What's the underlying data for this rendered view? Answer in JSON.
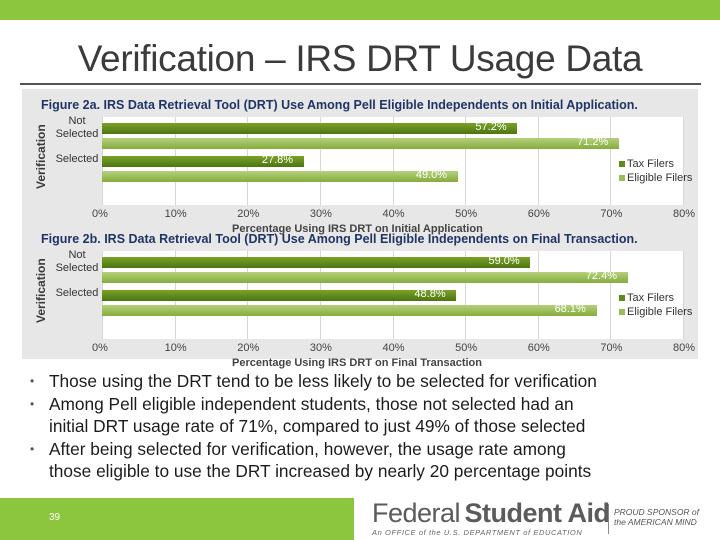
{
  "slide": {
    "title": "Verification – IRS DRT Usage Data",
    "page_number": "39"
  },
  "colors": {
    "accent_green": "#8cc63e",
    "tax_filers": "#5e8a1c",
    "eligible_filers": "#9bbd55",
    "figure_title": "#1f3566"
  },
  "figures": [
    {
      "title": "Figure 2a. IRS Data Retrieval Tool (DRT) Use Among Pell Eligible Independents on Initial Application.",
      "ylabel": "Verification",
      "xlabel": "Percentage Using IRS DRT on Initial Application",
      "categories": [
        {
          "name_line1": "Not",
          "name_line2": "Selected"
        },
        {
          "name_line1": "Selected",
          "name_line2": ""
        }
      ],
      "legend": [
        "Tax Filers",
        "Eligible Filers"
      ],
      "ticks": [
        "0%",
        "10%",
        "20%",
        "30%",
        "40%",
        "50%",
        "60%",
        "70%",
        "80%"
      ]
    },
    {
      "title": "Figure 2b. IRS Data Retrieval Tool (DRT) Use Among Pell Eligible Independents on Final Transaction.",
      "ylabel": "Verification",
      "xlabel": "Percentage Using IRS DRT on Final Transaction",
      "categories": [
        {
          "name_line1": "Not",
          "name_line2": "Selected"
        },
        {
          "name_line1": "Selected",
          "name_line2": ""
        }
      ],
      "legend": [
        "Tax Filers",
        "Eligible Filers"
      ],
      "ticks": [
        "0%",
        "10%",
        "20%",
        "30%",
        "40%",
        "50%",
        "60%",
        "70%",
        "80%"
      ]
    }
  ],
  "chart_data": [
    {
      "type": "bar",
      "orientation": "horizontal",
      "title": "Figure 2a. IRS Data Retrieval Tool (DRT) Use Among Pell Eligible Independents on Initial Application.",
      "ylabel": "Verification",
      "xlabel": "Percentage Using IRS DRT on Initial Application",
      "categories": [
        "Not Selected",
        "Selected"
      ],
      "series": [
        {
          "name": "Tax Filers",
          "values": [
            57.2,
            27.8
          ],
          "labels": [
            "57.2%",
            "27.8%"
          ]
        },
        {
          "name": "Eligible Filers",
          "values": [
            71.2,
            49.0
          ],
          "labels": [
            "71.2%",
            "49.0%"
          ]
        }
      ],
      "xlim": [
        0,
        80
      ],
      "legend_position": "right",
      "grid": true
    },
    {
      "type": "bar",
      "orientation": "horizontal",
      "title": "Figure 2b. IRS Data Retrieval Tool (DRT) Use Among Pell Eligible Independents on Final Transaction.",
      "ylabel": "Verification",
      "xlabel": "Percentage Using IRS DRT on Final Transaction",
      "categories": [
        "Not Selected",
        "Selected"
      ],
      "series": [
        {
          "name": "Tax Filers",
          "values": [
            59.0,
            48.8
          ],
          "labels": [
            "59.0%",
            "48.8%"
          ]
        },
        {
          "name": "Eligible Filers",
          "values": [
            72.4,
            68.1
          ],
          "labels": [
            "72.4%",
            "68.1%"
          ]
        }
      ],
      "xlim": [
        0,
        80
      ],
      "legend_position": "right",
      "grid": true
    }
  ],
  "bullets": [
    {
      "line1": "Those using the DRT tend to be less likely to be selected for verification",
      "line2": ""
    },
    {
      "line1": "Among Pell eligible independent students, those not selected had an",
      "line2": "initial DRT usage rate of 71%, compared to just 49% of those selected"
    },
    {
      "line1": "After being selected for verification, however, the usage rate among",
      "line2": "those eligible to use the DRT increased by nearly 20 percentage points"
    }
  ],
  "footer": {
    "logo_federal": "Federal",
    "logo_student_aid": "Student Aid",
    "logo_sub": "An OFFICE of the U.S. DEPARTMENT of EDUCATION",
    "proud_line1": "PROUD SPONSOR of",
    "proud_line2": "the AMERICAN MIND"
  }
}
